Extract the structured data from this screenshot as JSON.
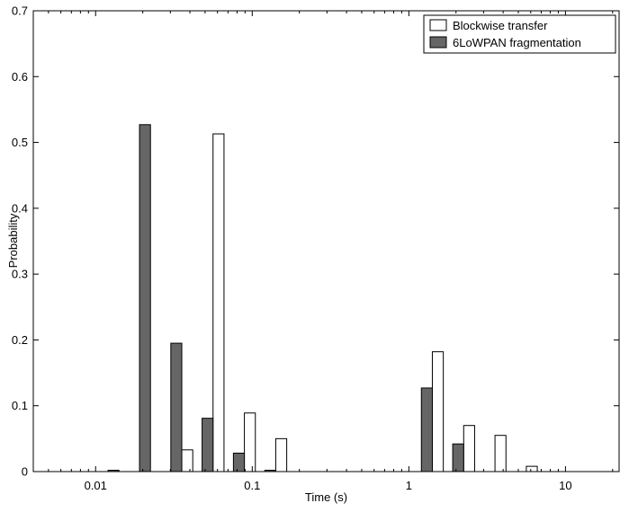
{
  "chart_data": {
    "type": "bar",
    "xlabel": "Time (s)",
    "ylabel": "Probability",
    "xscale": "log",
    "xlim": [
      0.004,
      22
    ],
    "ylim": [
      0,
      0.7
    ],
    "grid": false,
    "legend_position": "top-right",
    "yticks": [
      0,
      0.1,
      0.2,
      0.3,
      0.4,
      0.5,
      0.6,
      0.7
    ],
    "ytick_labels": [
      "0",
      "0.1",
      "0.2",
      "0.3",
      "0.4",
      "0.5",
      "0.6",
      "0.7"
    ],
    "xticks": [
      0.01,
      0.1,
      1,
      10
    ],
    "xtick_labels": [
      "0.01",
      "0.1",
      "1",
      "10"
    ],
    "x": [
      0.0056,
      0.0089,
      0.0141,
      0.0224,
      0.0355,
      0.0562,
      0.0891,
      0.1413,
      0.2239,
      0.3548,
      0.5623,
      0.8913,
      1.4125,
      2.2387,
      3.5481,
      5.6234,
      8.9125,
      14.1254
    ],
    "series": [
      {
        "name": "Blockwise transfer",
        "color": "#ffffff",
        "edge": "#000000",
        "values": [
          0,
          0,
          0,
          0,
          0.033,
          0.513,
          0.089,
          0.05,
          0,
          0,
          0,
          0,
          0.182,
          0.07,
          0.055,
          0.008,
          0,
          0
        ]
      },
      {
        "name": "6LoWPAN fragmentation",
        "color": "#666666",
        "edge": "#000000",
        "values": [
          0,
          0,
          0.002,
          0.527,
          0.195,
          0.081,
          0.028,
          0.002,
          0,
          0,
          0,
          0,
          0.127,
          0.042,
          0,
          0,
          0,
          0
        ]
      }
    ]
  }
}
